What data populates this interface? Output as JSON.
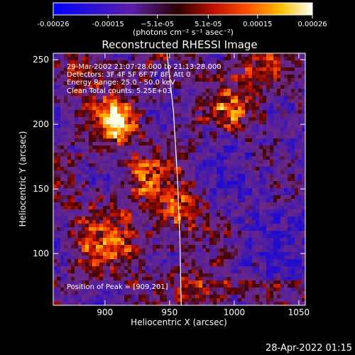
{
  "chart_data": {
    "type": "heatmap",
    "title": "Reconstructed RHESSI Image",
    "xlabel": "Heliocentric X (arcsec)",
    "ylabel": "Heliocentric Y (arcsec)",
    "xlim": [
      860,
      1055
    ],
    "ylim": [
      60,
      255
    ],
    "xticks": [
      900,
      950,
      1000,
      1050
    ],
    "yticks": [
      100,
      150,
      200,
      250
    ],
    "colorbar": {
      "range": [
        -0.00026,
        0.00026
      ],
      "ticks": [
        -0.00026,
        -0.00015,
        -5.1e-05,
        5.1e-05,
        0.00015,
        0.00026
      ],
      "tick_labels": [
        "-0.00026",
        "-0.00015",
        "−5.1e-05",
        "5.1e-05",
        "0.00015",
        "0.00026"
      ],
      "label": "(photons cm⁻² s⁻¹ asec⁻²)",
      "colormap": "blue-purple-red-yellow-white"
    },
    "annotations": [
      "29-Mar-2002 21:07:28.000 to 21:13:28.000",
      "Detectors: 3F 4F 5F 6F 7F 8F, Att 0",
      "Energy Range: 25.0 - 50.0 keV",
      "Clean    Total counts: 5.25E+03"
    ],
    "peak_label": "Position of Peak = [909,201]",
    "peak": [
      909,
      201
    ],
    "limb_curve": [
      [
        948,
        255
      ],
      [
        953,
        210
      ],
      [
        956,
        160
      ],
      [
        958,
        110
      ],
      [
        959,
        60
      ]
    ]
  },
  "footer": {
    "timestamp": "28-Apr-2022 01:15"
  }
}
